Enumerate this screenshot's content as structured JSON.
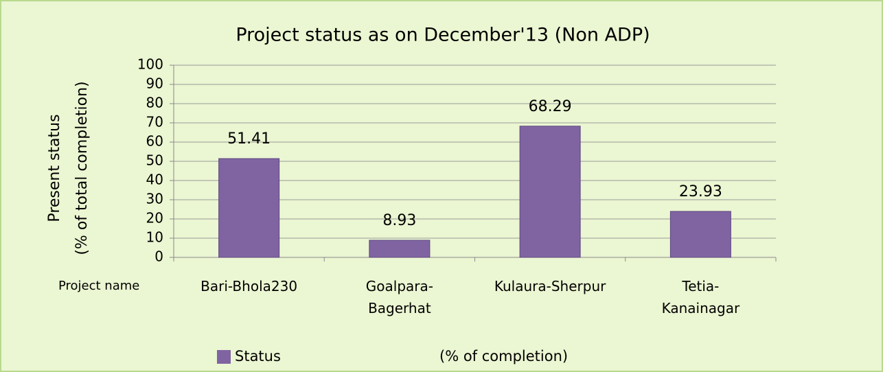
{
  "chart_data": {
    "type": "bar",
    "title": "Project status as on  December'13 (Non ADP)",
    "y_label": [
      "Present status",
      "(% of total completion)"
    ],
    "x_label": "Project name",
    "categories": [
      "Bari-Bhola230",
      "Goalpara-\nBagerhat",
      "Kulaura-Sherpur",
      "Tetia-\nKanainagar"
    ],
    "series": [
      {
        "name": "Status",
        "color": "#8064a2",
        "values": [
          51.41,
          8.93,
          68.29,
          23.93
        ]
      }
    ],
    "legend_note": "(% of completion)",
    "ylim": [
      0,
      100
    ],
    "yticks": [
      0,
      10,
      20,
      30,
      40,
      50,
      60,
      70,
      80,
      90,
      100
    ],
    "grid": true
  }
}
